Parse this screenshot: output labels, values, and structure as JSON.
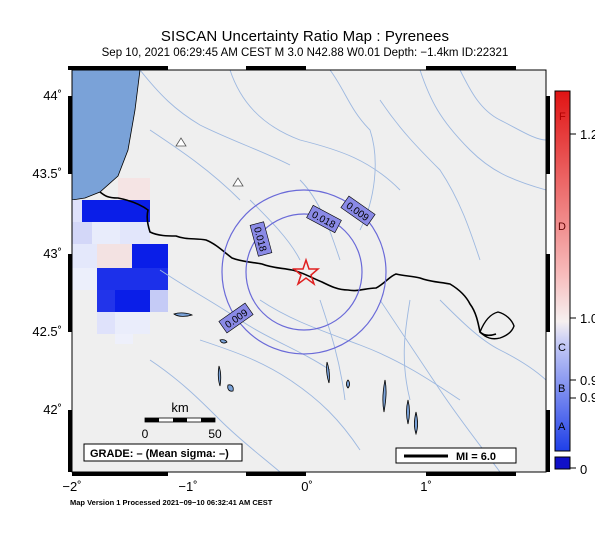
{
  "title": "SISCAN Uncertainty Ratio Map : Pyrenees",
  "subtitle": "Sep 10, 2021 06:29:45 AM CEST   M 3.0   N42.88 W0.01   Depth: −1.4km   ID:22321",
  "footer": "Map Version 1 Processed 2021−09−10 06:32:41 AM CEST",
  "map": {
    "lat_ticks": [
      {
        "value": 44,
        "label": "44˚"
      },
      {
        "value": 43.5,
        "label": "43.5˚"
      },
      {
        "value": 43,
        "label": "43˚"
      },
      {
        "value": 42.5,
        "label": "42.5˚"
      },
      {
        "value": 42,
        "label": "42˚"
      }
    ],
    "lon_ticks": [
      {
        "value": -2,
        "label": "−2˚"
      },
      {
        "value": -1,
        "label": "−1˚"
      },
      {
        "value": 0,
        "label": "0˚"
      },
      {
        "value": 1,
        "label": "1˚"
      }
    ],
    "contour_labels": [
      "0.009",
      "0.018",
      "0.018",
      "0.009"
    ],
    "epicenter": {
      "lat": 42.88,
      "lon": -0.01
    },
    "scale_bar": {
      "unit": "km",
      "labels": [
        "0",
        "50"
      ]
    },
    "grade": "GRADE: – (Mean sigma: –)",
    "legend_mi": "MI = 6.0"
  },
  "colorbar": {
    "letters": [
      "F",
      "D",
      "C",
      "B",
      "A"
    ],
    "values": [
      "1.2",
      "1.0",
      "0.9",
      "0.9",
      "0"
    ]
  },
  "colors": {
    "land": "#efefef",
    "sea": "#7aa2d8",
    "contour": "#6a6ad8",
    "river": "#9db8e0",
    "epicenter": "#e02020"
  }
}
